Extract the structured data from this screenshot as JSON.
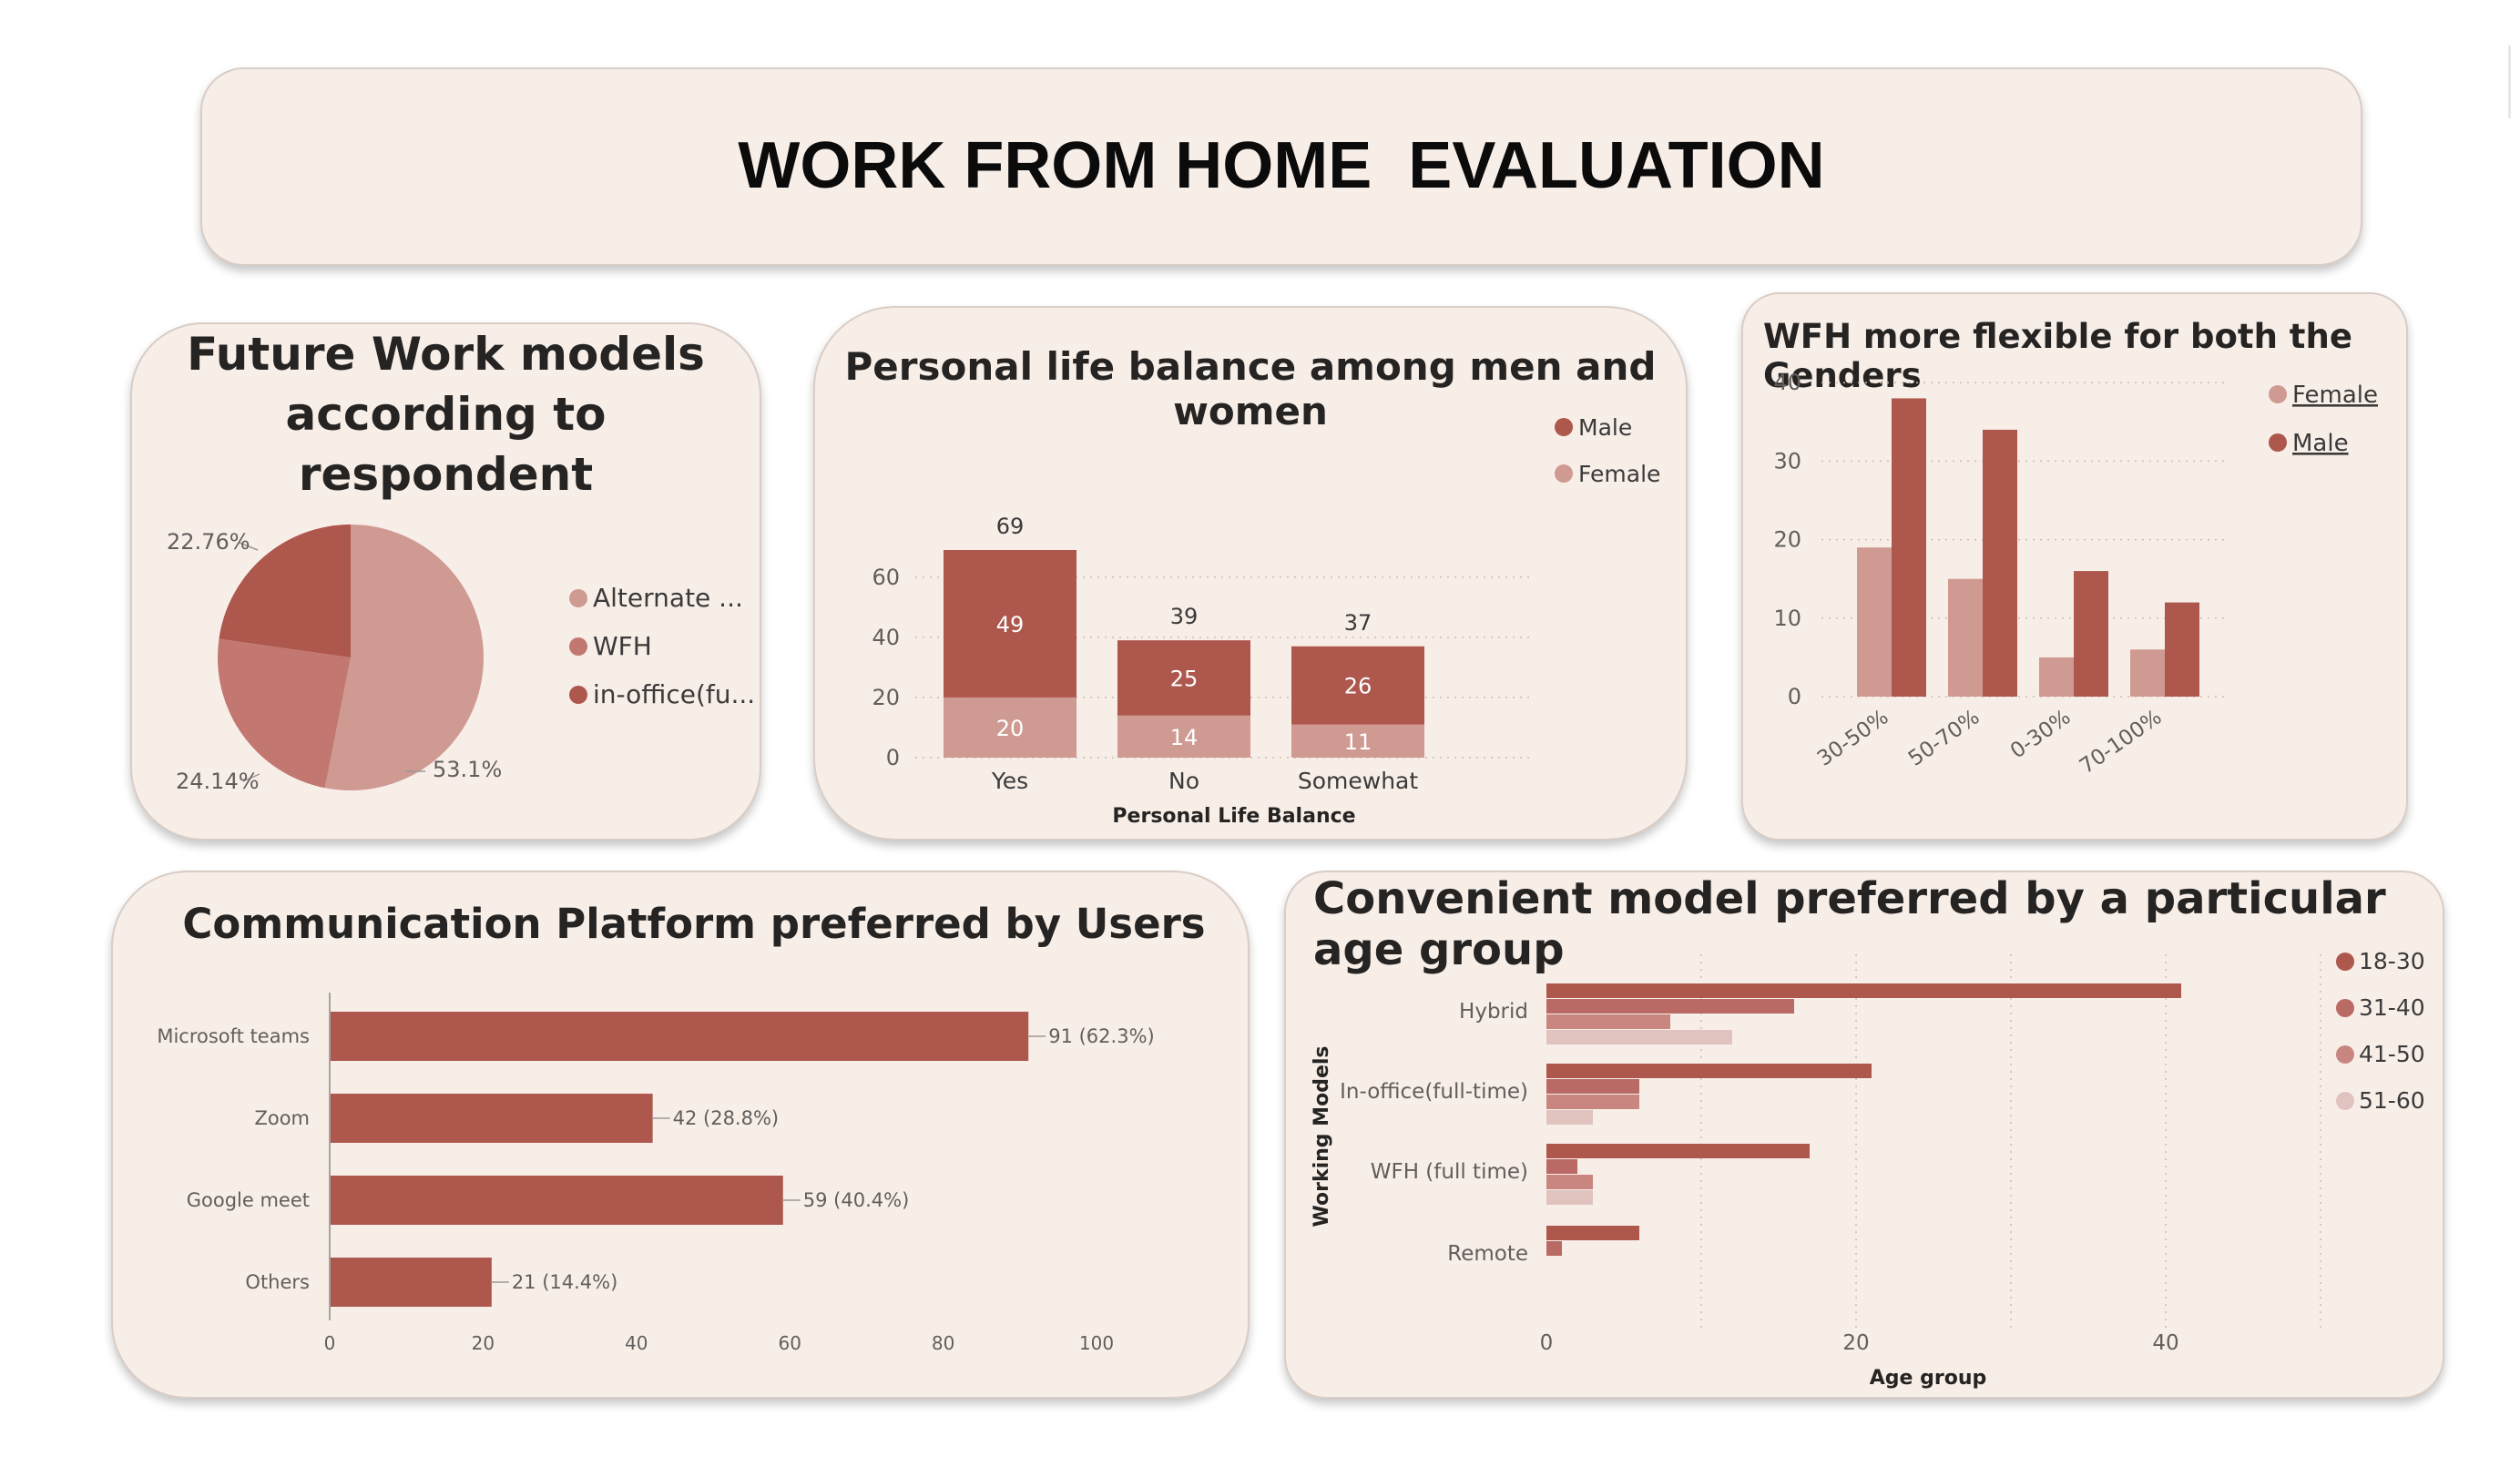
{
  "page": {
    "title": "WORK FROM HOME  EVALUATION"
  },
  "colors": {
    "dark": "#ad574d",
    "medium": "#c27871",
    "light": "#cf9a92",
    "palest": "#e0c3be",
    "panel": "#f8eee8",
    "border": "#d9cdc6"
  },
  "pie_legend_full": [
    "Alternate ...",
    "WFH",
    "in-office(fu..."
  ],
  "chart_data": [
    {
      "id": "future_work_models",
      "type": "pie",
      "title": "Future Work models according to respondent",
      "title_lines": [
        "Future Work models",
        "according to respondent"
      ],
      "slices": [
        {
          "label": "Alternate ...",
          "value": 53.1,
          "value_label": "53.1%",
          "color": "#cf9a92"
        },
        {
          "label": "WFH",
          "value": 24.14,
          "value_label": "24.14%",
          "color": "#c27871"
        },
        {
          "label": "in-office(fu...",
          "value": 22.76,
          "value_label": "22.76%",
          "color": "#ad574d"
        }
      ],
      "legend": [
        "Alternate ...",
        "WFH",
        "in-office(fu..."
      ],
      "legend_position": "right"
    },
    {
      "id": "personal_life_balance",
      "type": "bar",
      "stacked": true,
      "title": "Personal life balance among men and women",
      "xlabel": "Personal Life Balance",
      "ylabel": "",
      "categories": [
        "Yes",
        "No",
        "Somewhat"
      ],
      "series": [
        {
          "name": "Female",
          "values": [
            20,
            14,
            11
          ],
          "color": "#cf9a92"
        },
        {
          "name": "Male",
          "values": [
            49,
            25,
            26
          ],
          "color": "#ad574d"
        }
      ],
      "totals": [
        69,
        39,
        37
      ],
      "ylim": [
        0,
        72
      ],
      "yticks": [
        0,
        20,
        40,
        60
      ],
      "grid": "dotted",
      "legend_position": "top-right"
    },
    {
      "id": "wfh_flexible_genders",
      "type": "bar",
      "stacked": false,
      "title": "WFH more flexible for both the Genders",
      "xlabel": "",
      "ylabel": "",
      "categories": [
        "30-50%",
        "50-70%",
        "0-30%",
        "70-100%"
      ],
      "series": [
        {
          "name": "Female",
          "values": [
            19,
            15,
            5,
            6
          ],
          "color": "#cf9a92"
        },
        {
          "name": "Male",
          "values": [
            38,
            34,
            16,
            12
          ],
          "color": "#ad574d"
        }
      ],
      "ylim": [
        0,
        40
      ],
      "yticks": [
        0,
        10,
        20,
        30,
        40
      ],
      "grid": "dotted",
      "legend_position": "top-right"
    },
    {
      "id": "communication_platform",
      "type": "bar",
      "orientation": "horizontal",
      "title": "Communication Platform preferred by Users",
      "categories": [
        "Microsoft teams",
        "Zoom",
        "Google meet",
        "Others"
      ],
      "values": [
        91,
        42,
        59,
        21
      ],
      "value_labels": [
        "91 (62.3%)",
        "42 (28.8%)",
        "59 (40.4%)",
        "21 (14.4%)"
      ],
      "xlim": [
        0,
        100
      ],
      "xticks": [
        0,
        20,
        40,
        60,
        80,
        100
      ],
      "color": "#ad574d"
    },
    {
      "id": "convenient_model_age",
      "type": "bar",
      "orientation": "horizontal",
      "title": "Convenient model preferred by a particular age group",
      "xlabel": "Age group",
      "ylabel": "Working Models",
      "categories": [
        "Hybrid",
        "In-office(full-time)",
        "WFH (full time)",
        "Remote"
      ],
      "series": [
        {
          "name": "18-30",
          "values": [
            41,
            21,
            17,
            6
          ],
          "color": "#ad574d"
        },
        {
          "name": "31-40",
          "values": [
            16,
            6,
            2,
            1
          ],
          "color": "#b96a64"
        },
        {
          "name": "41-50",
          "values": [
            8,
            6,
            3,
            0
          ],
          "color": "#c98680"
        },
        {
          "name": "51-60",
          "values": [
            12,
            3,
            3,
            0
          ],
          "color": "#e0c3be"
        }
      ],
      "xlim": [
        0,
        50
      ],
      "xticks": [
        0,
        20,
        40
      ],
      "grid": "dotted",
      "legend_position": "top-right"
    }
  ]
}
